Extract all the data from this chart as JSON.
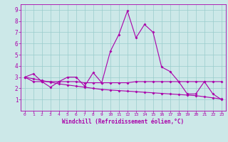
{
  "xlabel": "Windchill (Refroidissement éolien,°C)",
  "bg_color": "#cce8e8",
  "line_color": "#aa00aa",
  "grid_color": "#99cccc",
  "xlim": [
    -0.5,
    23.5
  ],
  "ylim": [
    0,
    9.5
  ],
  "xticks": [
    0,
    1,
    2,
    3,
    4,
    5,
    6,
    7,
    8,
    9,
    10,
    11,
    12,
    13,
    14,
    15,
    16,
    17,
    18,
    19,
    20,
    21,
    22,
    23
  ],
  "yticks": [
    1,
    2,
    3,
    4,
    5,
    6,
    7,
    8,
    9
  ],
  "line1_x": [
    0,
    1,
    2,
    3,
    4,
    5,
    6,
    7,
    8,
    9,
    10,
    11,
    12,
    13,
    14,
    15,
    16,
    17,
    18,
    19,
    20,
    21,
    22,
    23
  ],
  "line1_y": [
    3.0,
    3.3,
    2.6,
    2.1,
    2.6,
    3.0,
    3.0,
    2.2,
    3.4,
    2.5,
    5.3,
    6.8,
    8.9,
    6.5,
    7.7,
    7.0,
    3.9,
    3.5,
    2.6,
    1.5,
    1.5,
    2.6,
    1.5,
    1.0
  ],
  "line2_x": [
    0,
    1,
    2,
    3,
    4,
    5,
    6,
    7,
    8,
    9,
    10,
    11,
    12,
    13,
    14,
    15,
    16,
    17,
    18,
    19,
    20,
    21,
    22,
    23
  ],
  "line2_y": [
    3.0,
    2.6,
    2.6,
    2.6,
    2.6,
    2.6,
    2.6,
    2.5,
    2.5,
    2.5,
    2.5,
    2.5,
    2.5,
    2.6,
    2.6,
    2.6,
    2.6,
    2.6,
    2.6,
    2.6,
    2.6,
    2.6,
    2.6,
    2.6
  ],
  "line3_x": [
    0,
    1,
    2,
    3,
    4,
    5,
    6,
    7,
    8,
    9,
    10,
    11,
    12,
    13,
    14,
    15,
    16,
    17,
    18,
    19,
    20,
    21,
    22,
    23
  ],
  "line3_y": [
    3.0,
    2.85,
    2.7,
    2.55,
    2.4,
    2.3,
    2.2,
    2.1,
    2.0,
    1.9,
    1.85,
    1.8,
    1.75,
    1.7,
    1.65,
    1.6,
    1.55,
    1.5,
    1.45,
    1.4,
    1.35,
    1.25,
    1.15,
    1.05
  ]
}
